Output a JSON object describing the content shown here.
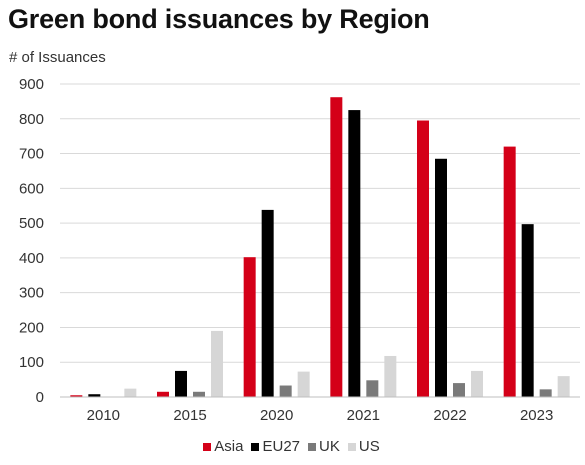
{
  "chart_data": {
    "type": "bar",
    "title": "Green bond issuances by Region",
    "ylabel": "# of Issuances",
    "xlabel": "",
    "ylim": [
      0,
      900
    ],
    "yticks": [
      0,
      100,
      200,
      300,
      400,
      500,
      600,
      700,
      800,
      900
    ],
    "grid": true,
    "legend_position": "bottom",
    "categories": [
      "2010",
      "2015",
      "2020",
      "2021",
      "2022",
      "2023"
    ],
    "series": [
      {
        "name": "Asia",
        "color": "#d40018",
        "values": [
          5,
          15,
          402,
          862,
          795,
          720
        ]
      },
      {
        "name": "EU27",
        "color": "#000000",
        "values": [
          8,
          75,
          538,
          825,
          685,
          497
        ]
      },
      {
        "name": "UK",
        "color": "#7a7a7a",
        "values": [
          0,
          15,
          33,
          48,
          40,
          22
        ]
      },
      {
        "name": "US",
        "color": "#d6d6d6",
        "values": [
          24,
          190,
          73,
          118,
          75,
          60
        ]
      }
    ]
  }
}
